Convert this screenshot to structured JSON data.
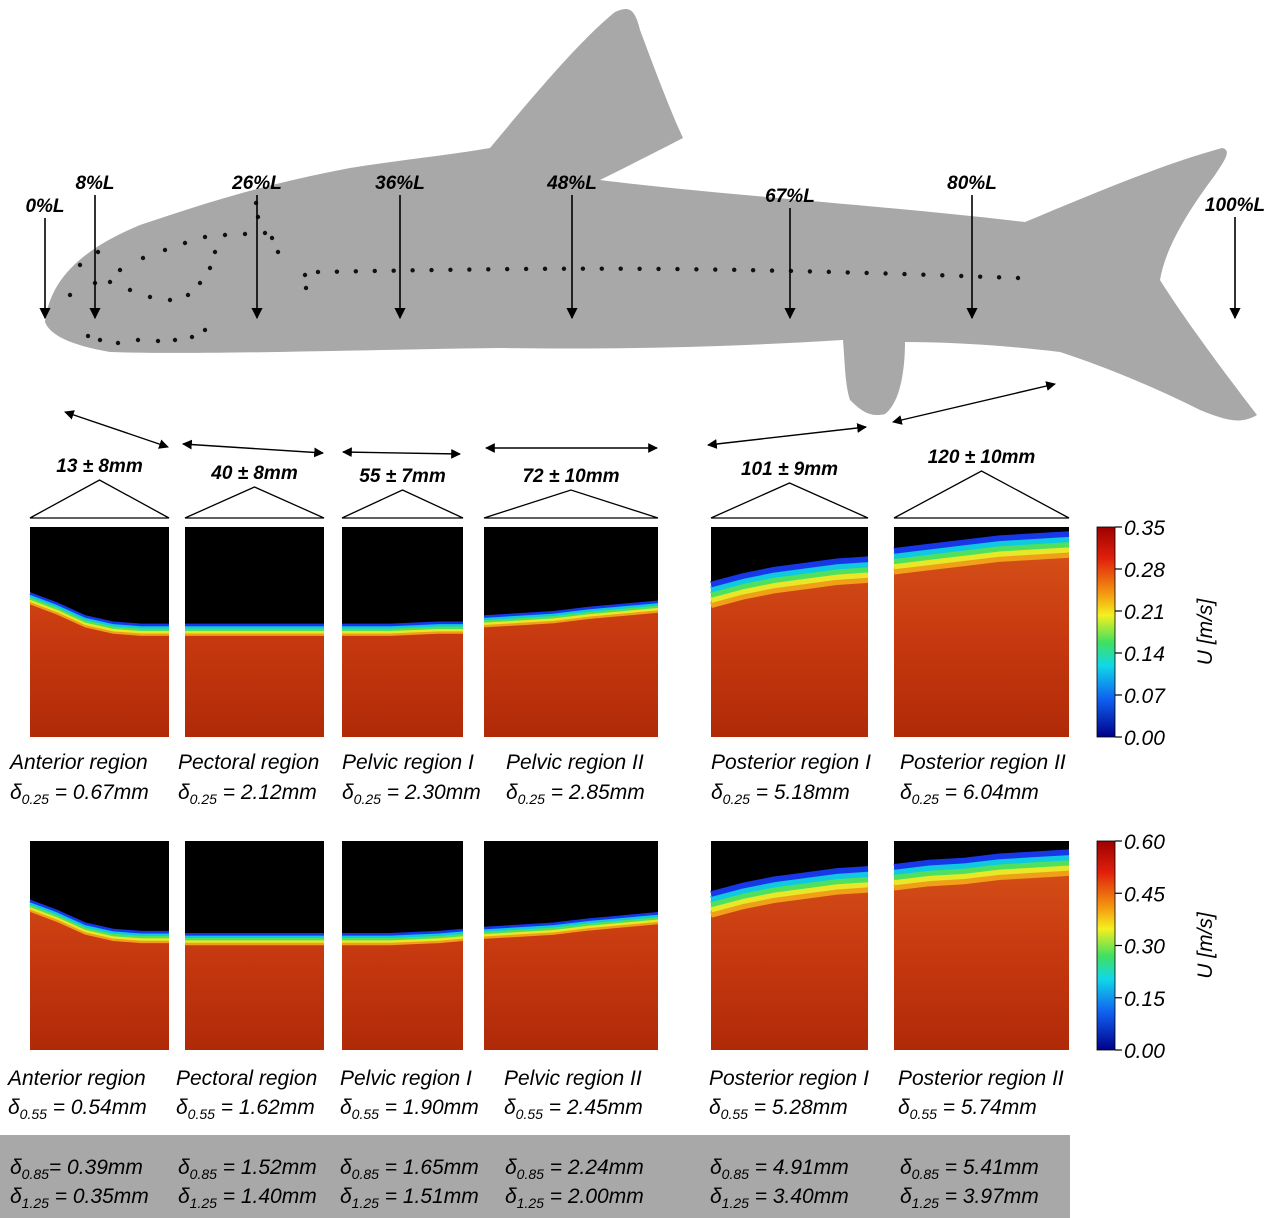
{
  "figure": {
    "fish_labels": [
      "0%L",
      "8%L",
      "26%L",
      "36%L",
      "48%L",
      "67%L",
      "80%L",
      "100%L"
    ],
    "symbol": "δ",
    "regions": [
      {
        "size": "13 ± 8mm",
        "name": "Anterior region",
        "row1": {
          "sub": "0.25",
          "text": " = 0.67mm"
        },
        "row2": {
          "sub": "0.55",
          "text": " = 0.54mm"
        },
        "row3": {
          "sub": "0.85",
          "text": "= 0.39mm"
        },
        "row4": {
          "sub": "1.25",
          "text": " = 0.35mm"
        }
      },
      {
        "size": "40 ± 8mm",
        "name": "Pectoral region",
        "row1": {
          "sub": "0.25",
          "text": " = 2.12mm"
        },
        "row2": {
          "sub": "0.55",
          "text": " = 1.62mm"
        },
        "row3": {
          "sub": "0.85",
          "text": " = 1.52mm"
        },
        "row4": {
          "sub": "1.25",
          "text": " = 1.40mm"
        }
      },
      {
        "size": "55 ± 7mm",
        "name": "Pelvic region I",
        "row1": {
          "sub": "0.25",
          "text": " = 2.30mm"
        },
        "row2": {
          "sub": "0.55",
          "text": " = 1.90mm"
        },
        "row3": {
          "sub": "0.85",
          "text": " = 1.65mm"
        },
        "row4": {
          "sub": "1.25",
          "text": " = 1.51mm"
        }
      },
      {
        "size": "72 ± 10mm",
        "name": "Pelvic region II",
        "row1": {
          "sub": "0.25",
          "text": " = 2.85mm"
        },
        "row2": {
          "sub": "0.55",
          "text": " = 2.45mm"
        },
        "row3": {
          "sub": "0.85",
          "text": " = 2.24mm"
        },
        "row4": {
          "sub": "1.25",
          "text": " = 2.00mm"
        }
      },
      {
        "size": "101 ± 9mm",
        "name": "Posterior region I",
        "row1": {
          "sub": "0.25",
          "text": " = 5.18mm"
        },
        "row2": {
          "sub": "0.55",
          "text": " = 5.28mm"
        },
        "row3": {
          "sub": "0.85",
          "text": " = 4.91mm"
        },
        "row4": {
          "sub": "1.25",
          "text": " = 3.40mm"
        }
      },
      {
        "size": "120 ± 10mm",
        "name": "Posterior region II",
        "row1": {
          "sub": "0.25",
          "text": " = 6.04mm"
        },
        "row2": {
          "sub": "0.55",
          "text": " = 5.74mm"
        },
        "row3": {
          "sub": "0.85",
          "text": " = 5.41mm"
        },
        "row4": {
          "sub": "1.25",
          "text": " = 3.97mm"
        }
      }
    ],
    "colorbars": [
      {
        "label": "U [m/s]",
        "ticks": [
          "0.35",
          "0.28",
          "0.21",
          "0.14",
          "0.07",
          "0.00"
        ]
      },
      {
        "label": "U [m/s]",
        "ticks": [
          "0.60",
          "0.45",
          "0.30",
          "0.15",
          "0.00"
        ]
      }
    ]
  }
}
